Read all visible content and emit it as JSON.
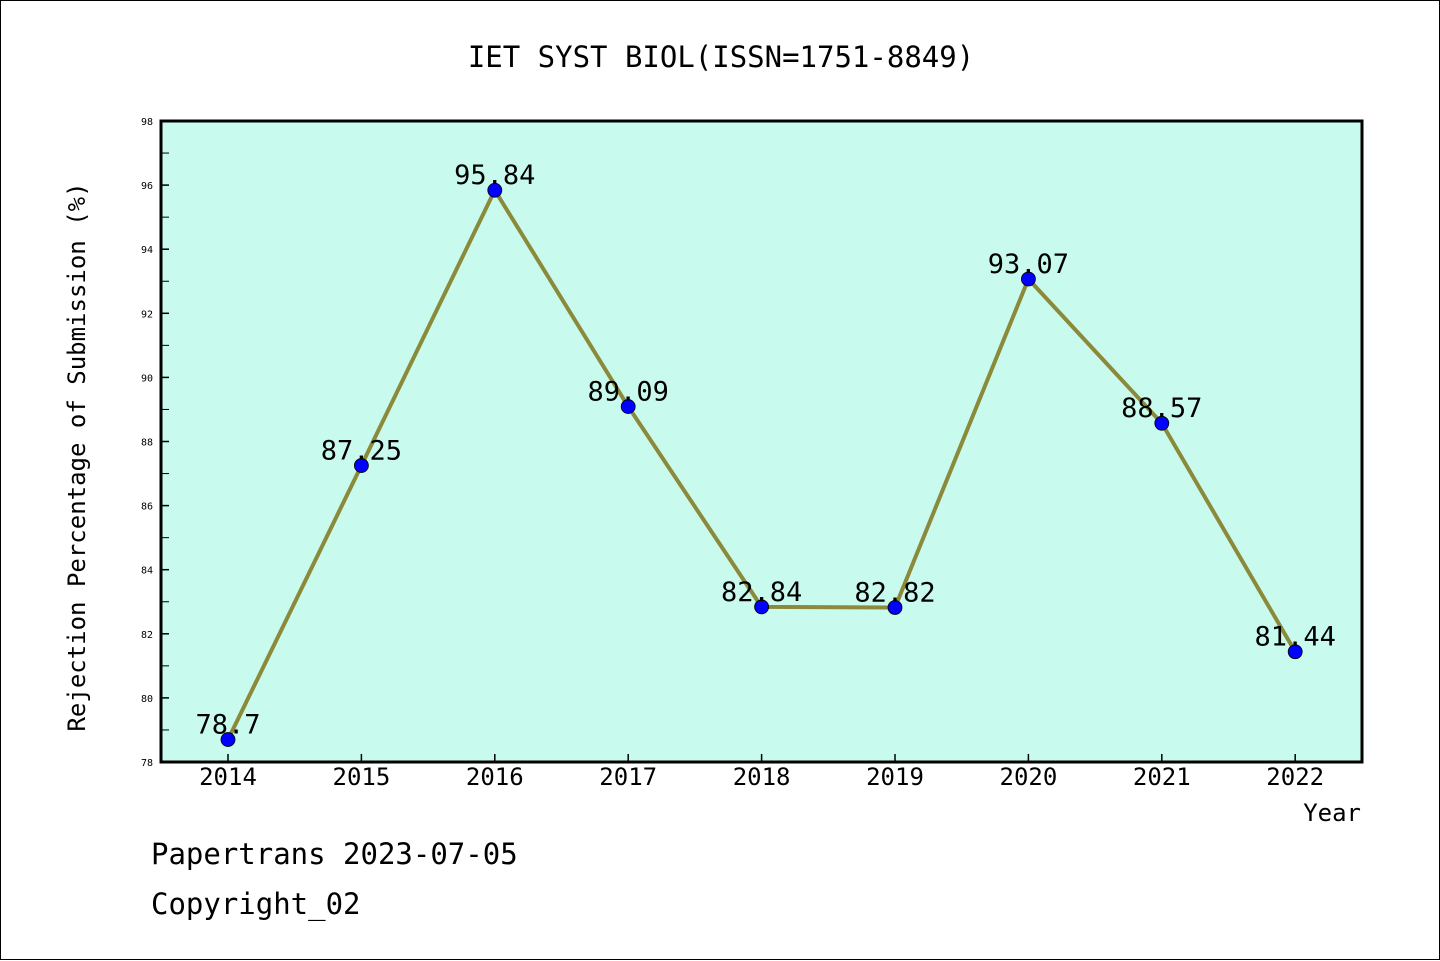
{
  "chart_data": {
    "type": "line",
    "title": "IET SYST BIOL(ISSN=1751-8849)",
    "xlabel": "Year",
    "ylabel": "Rejection Percentage of Submission (%)",
    "categories": [
      "2014",
      "2015",
      "2016",
      "2017",
      "2018",
      "2019",
      "2020",
      "2021",
      "2022"
    ],
    "values": [
      78.7,
      87.25,
      95.84,
      89.09,
      82.84,
      82.82,
      93.07,
      88.57,
      81.44
    ],
    "data_labels": [
      "78.7",
      "87.25",
      "95.84",
      "89.09",
      "82.84",
      "82.82",
      "93.07",
      "88.57",
      "81.44"
    ],
    "ylim": [
      78,
      98
    ],
    "yticks": [
      "78",
      "80",
      "82",
      "84",
      "86",
      "88",
      "90",
      "92",
      "94",
      "96",
      "98"
    ],
    "grid": false,
    "colors": {
      "plot_background": "#c8fbee",
      "line": "#8b8a3a",
      "marker": "#0000ff"
    }
  },
  "footer": {
    "line1": "Papertrans 2023-07-05",
    "line2": "Copyright_02"
  }
}
